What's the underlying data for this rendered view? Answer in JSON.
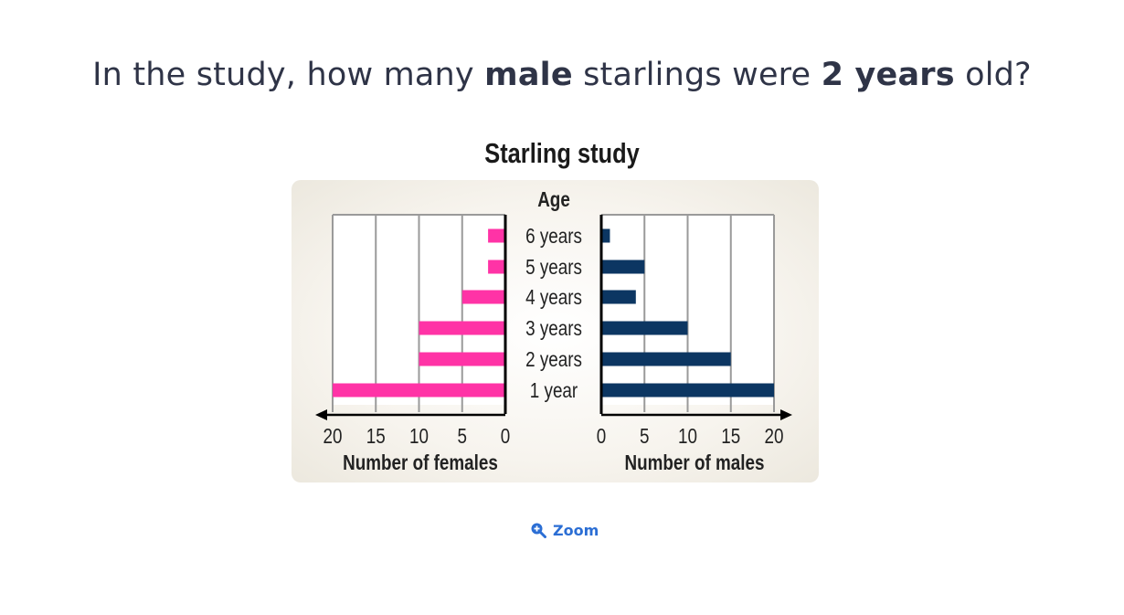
{
  "question": {
    "part1": "In the study, how many ",
    "bold1": "male",
    "part2": " starlings were ",
    "bold2": "2 years",
    "part3": " old?"
  },
  "zoom": {
    "label": "Zoom",
    "icon": "zoom-in-icon"
  },
  "colors": {
    "female": "#ff33a6",
    "male": "#0c3662",
    "grid": "#9a9a9a",
    "panel": "#f4f1ea"
  },
  "chart_data": {
    "type": "bar",
    "title": "Starling study",
    "category_axis_label": "Age",
    "categories": [
      "6 years",
      "5 years",
      "4 years",
      "3 years",
      "2 years",
      "1 year"
    ],
    "series": [
      {
        "name": "Number of females",
        "values": [
          2,
          2,
          5,
          10,
          10,
          20
        ]
      },
      {
        "name": "Number of males",
        "values": [
          1,
          5,
          4,
          10,
          15,
          20
        ]
      }
    ],
    "females_xlabel": "Number of females",
    "males_xlabel": "Number of males",
    "xlim": [
      0,
      20
    ],
    "ticks": [
      0,
      5,
      10,
      15,
      20
    ],
    "grid": true
  }
}
